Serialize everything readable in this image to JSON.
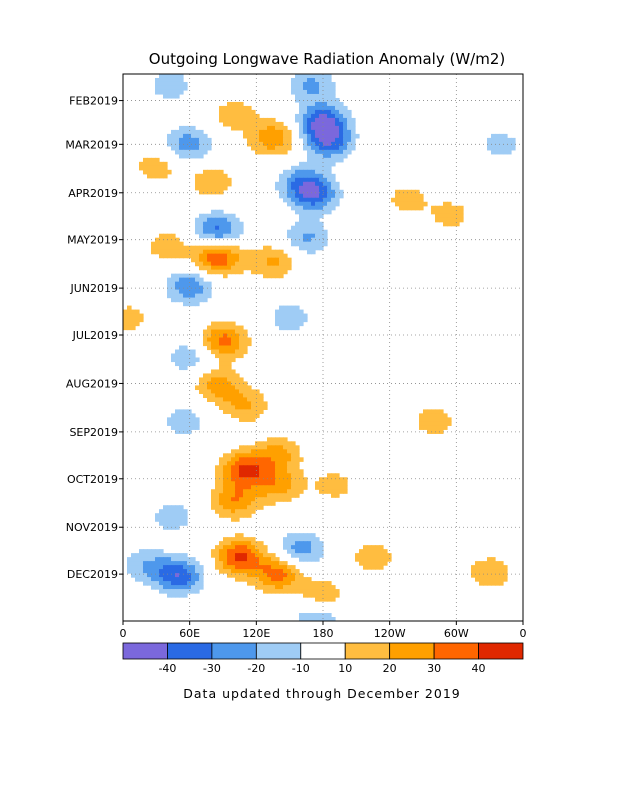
{
  "chart_data": {
    "type": "heatmap",
    "title": "Outgoing Longwave Radiation Anomaly (W/m2)",
    "xlabel": "",
    "ylabel": "",
    "x_tick_labels": [
      "0",
      "60E",
      "120E",
      "180",
      "120W",
      "60W",
      "0"
    ],
    "x_tick_values_deg_east": [
      0,
      60,
      120,
      180,
      240,
      300,
      360
    ],
    "y_tick_labels": [
      "FEB2019",
      "MAR2019",
      "APR2019",
      "MAY2019",
      "JUN2019",
      "JUL2019",
      "AUG2019",
      "SEP2019",
      "OCT2019",
      "NOV2019",
      "DEC2019"
    ],
    "y_range": [
      "2019-01-15",
      "2019-12-31"
    ],
    "grid": true,
    "colorbar": {
      "labels": [
        "-40",
        "-30",
        "-20",
        "-10",
        "10",
        "20",
        "30",
        "40"
      ],
      "boundaries": [
        -40,
        -30,
        -20,
        -10,
        10,
        20,
        30,
        40
      ],
      "colors": [
        "#7b68dc",
        "#2a6ae4",
        "#4e98ec",
        "#9fccf5",
        "#ffffff",
        "#ffbd40",
        "#ffa000",
        "#ff6600",
        "#e02800"
      ]
    },
    "blobs": [
      {
        "lon": 42,
        "date": "2019-01-22",
        "value": -16
      },
      {
        "lon": 170,
        "date": "2019-01-22",
        "value": -22
      },
      {
        "lon": 100,
        "date": "2019-02-10",
        "value": 16
      },
      {
        "lon": 135,
        "date": "2019-02-25",
        "value": 28
      },
      {
        "lon": 180,
        "date": "2019-02-15",
        "value": -42
      },
      {
        "lon": 185,
        "date": "2019-02-28",
        "value": -32
      },
      {
        "lon": 58,
        "date": "2019-03-01",
        "value": -26
      },
      {
        "lon": 30,
        "date": "2019-03-15",
        "value": 16
      },
      {
        "lon": 80,
        "date": "2019-03-25",
        "value": 18
      },
      {
        "lon": 160,
        "date": "2019-03-25",
        "value": -22
      },
      {
        "lon": 172,
        "date": "2019-04-02",
        "value": -34
      },
      {
        "lon": 255,
        "date": "2019-04-05",
        "value": 14
      },
      {
        "lon": 295,
        "date": "2019-04-15",
        "value": 14
      },
      {
        "lon": 85,
        "date": "2019-04-25",
        "value": -34
      },
      {
        "lon": 165,
        "date": "2019-04-30",
        "value": -22
      },
      {
        "lon": 85,
        "date": "2019-05-12",
        "value": 40
      },
      {
        "lon": 40,
        "date": "2019-05-05",
        "value": 16
      },
      {
        "lon": 135,
        "date": "2019-05-15",
        "value": 22
      },
      {
        "lon": 60,
        "date": "2019-05-31",
        "value": -28
      },
      {
        "lon": 5,
        "date": "2019-06-20",
        "value": 14
      },
      {
        "lon": 150,
        "date": "2019-06-20",
        "value": -16
      },
      {
        "lon": 90,
        "date": "2019-07-05",
        "value": 34
      },
      {
        "lon": 60,
        "date": "2019-07-15",
        "value": -18
      },
      {
        "lon": 85,
        "date": "2019-08-02",
        "value": 24
      },
      {
        "lon": 110,
        "date": "2019-08-15",
        "value": 20
      },
      {
        "lon": 55,
        "date": "2019-08-25",
        "value": -16
      },
      {
        "lon": 280,
        "date": "2019-08-25",
        "value": 16
      },
      {
        "lon": 140,
        "date": "2019-09-15",
        "value": 22
      },
      {
        "lon": 110,
        "date": "2019-09-25",
        "value": 40
      },
      {
        "lon": 100,
        "date": "2019-10-15",
        "value": 28
      },
      {
        "lon": 140,
        "date": "2019-10-05",
        "value": 24
      },
      {
        "lon": 45,
        "date": "2019-10-25",
        "value": -16
      },
      {
        "lon": 190,
        "date": "2019-10-05",
        "value": 14
      },
      {
        "lon": 105,
        "date": "2019-11-20",
        "value": 42
      },
      {
        "lon": 140,
        "date": "2019-12-01",
        "value": 34
      },
      {
        "lon": 160,
        "date": "2019-11-15",
        "value": -26
      },
      {
        "lon": 50,
        "date": "2019-12-02",
        "value": -38
      },
      {
        "lon": 20,
        "date": "2019-11-25",
        "value": -18
      },
      {
        "lon": 180,
        "date": "2019-12-15",
        "value": 18
      },
      {
        "lon": 225,
        "date": "2019-11-20",
        "value": 16
      },
      {
        "lon": 330,
        "date": "2019-11-30",
        "value": 18
      },
      {
        "lon": 175,
        "date": "2019-12-30",
        "value": -22
      },
      {
        "lon": 340,
        "date": "2019-03-01",
        "value": -14
      }
    ]
  },
  "footer": {
    "note": "Data updated through December 2019"
  }
}
